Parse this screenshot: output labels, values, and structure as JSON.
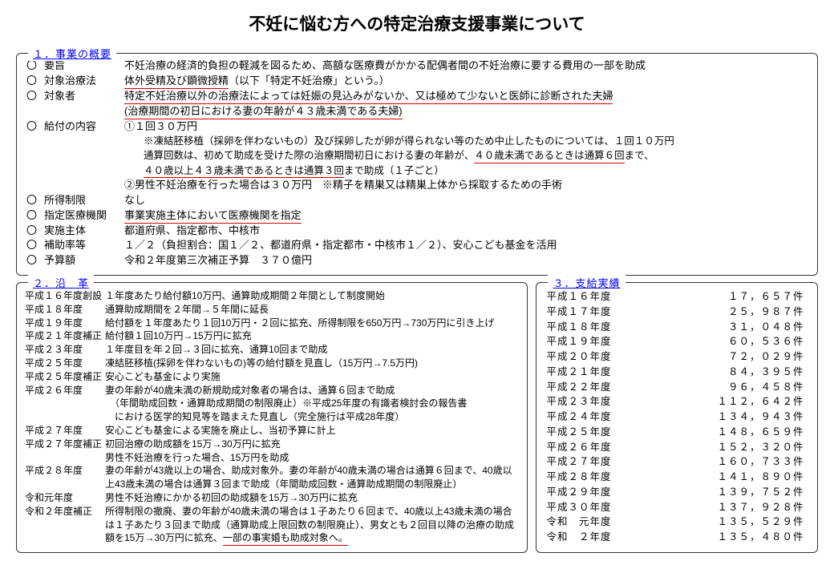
{
  "title": "不妊に悩む方への特定治療支援事業について",
  "box1": {
    "legend": "１．事業の概要",
    "rows": [
      {
        "label": "要旨",
        "value": "不妊治療の経済的負担の軽減を図るため、高額な医療費がかかる配偶者間の不妊治療に要する費用の一部を助成"
      },
      {
        "label": "対象治療法",
        "value": "<span class='ul-red'>体外受精及び顕微授精</span>（以下「特定不妊治療」という。）"
      },
      {
        "label": "対象者",
        "value": "<span class='ul-red'>特定不妊治療以外の治療法によっては妊娠の見込みがないか、又は極めて少ないと医師に診断された夫婦</span><br><span class='ul-red'>(治療期間の初日における妻の年齢が４３歳未満である夫婦)</span>"
      },
      {
        "label": "給付の内容",
        "value": "①１回３０万円<br><span class='note-indent'>※凍結胚移植（採卵を伴わないもの）及び採卵したが卵が得られない等のため中止したものについては、１回１０万円<br>通算回数は、初めて助成を受けた際の治療期間初日における妻の年齢が、<span class='ul-red'>４０歳未満であるときは通算６回</span>まで、<br><span class='ul-red'>４０歳以上４３歳未満であるときは通算３回</span>まで助成（１子ごと）</span>②男性不妊治療を行った場合は３０万円　※精子を精巣又は精巣上体から採取するための手術"
      },
      {
        "label": "所得制限",
        "value": "なし"
      },
      {
        "label": "指定医療機関",
        "value": "<span class='ul-red'>事業実施主体において医療機関を指定</span>"
      },
      {
        "label": "実施主体",
        "value": "都道府県、指定都市、中核市"
      },
      {
        "label": "補助率等",
        "value": "１／２（負担割合：国１／２、都道府県・指定都市・中核市１／２）、安心こども基金を活用"
      },
      {
        "label": "予算額",
        "value": "令和２年度第三次補正予算　３７０億円"
      }
    ]
  },
  "box2": {
    "legend": "２．沿　革",
    "rows": [
      {
        "year": "平成１６年度創設",
        "desc": "１年度あたり給付額10万円、通算助成期間２年間として制度開始"
      },
      {
        "year": "平成１８年度",
        "desc": "通算助成期間を２年間→５年間に延長"
      },
      {
        "year": "平成１９年度",
        "desc": "給付額を１年度あたり１回10万円・２回に拡充、所得制限を650万円→730万円に引き上げ"
      },
      {
        "year": "平成２１年度補正",
        "desc": "給付額１回10万円→15万円に拡充"
      },
      {
        "year": "平成２３年度",
        "desc": "１年度目を年２回→３回に拡充、通算10回まで助成"
      },
      {
        "year": "平成２５年度",
        "desc": "凍結胚移植(採卵を伴わないもの)等の給付額を見直し（15万円→7.5万円)"
      },
      {
        "year": "平成２５年度補正",
        "desc": "安心こども基金により実施"
      },
      {
        "year": "平成２６年度",
        "desc": "妻の年齢が40歳未満の新規助成対象者の場合は、通算６回まで助成<br>　（年間助成回数・通算助成期間の制限廃止）※平成25年度の有識者検討会の報告書<br>　における医学的知見等を踏まえた見直し（完全施行は平成28年度）"
      },
      {
        "year": "平成２７年度",
        "desc": "安心こども基金による実施を廃止し、当初予算に計上"
      },
      {
        "year": "平成２７年度補正",
        "desc": "初回治療の助成額を15万→30万円に拡充<br>男性不妊治療を行った場合、15万円を助成"
      },
      {
        "year": "平成２８年度",
        "desc": "妻の年齢が43歳以上の場合、助成対象外。妻の年齢が40歳未満の場合は通算６回まで、40歳以上43歳未満の場合は通算３回まで助成（年間助成回数・通算助成期間の制限廃止）"
      },
      {
        "year": "令和元年度",
        "desc": "男性不妊治療にかかる初回の助成額を15万→30万円に拡充"
      },
      {
        "year": "令和２年度補正",
        "desc": "所得制限の撤廃、妻の年齢が40歳未満の場合は１子あたり６回まで、40歳以上43歳未満の場合は１子あたり３回まで助成（通算助成上限回数の制限廃止）、男女とも２回目以降の治療の助成額を15万→30万円に拡充、<span class='ul-red'>一部の事実婚も助成対象へ。</span>"
      }
    ]
  },
  "box3": {
    "legend": "３．支給実績",
    "rows": [
      {
        "year": "平成１６年度",
        "val": "１７，６５７"
      },
      {
        "year": "平成１７年度",
        "val": "２５，９８７"
      },
      {
        "year": "平成１８年度",
        "val": "３１，０４８"
      },
      {
        "year": "平成１９年度",
        "val": "６０，５３６"
      },
      {
        "year": "平成２０年度",
        "val": "７２，０２９"
      },
      {
        "year": "平成２１年度",
        "val": "８４，３９５"
      },
      {
        "year": "平成２２年度",
        "val": "９６，４５８"
      },
      {
        "year": "平成２３年度",
        "val": "１１２，６４２"
      },
      {
        "year": "平成２４年度",
        "val": "１３４，９４３"
      },
      {
        "year": "平成２５年度",
        "val": "１４８，６５９"
      },
      {
        "year": "平成２６年度",
        "val": "１５２，３２０"
      },
      {
        "year": "平成２７年度",
        "val": "１６０，７３３"
      },
      {
        "year": "平成２８年度",
        "val": "１４１，８９０"
      },
      {
        "year": "平成２９年度",
        "val": "１３９，７５２"
      },
      {
        "year": "平成３０年度",
        "val": "１３７，９２８"
      },
      {
        "year": "令和　元年度",
        "val": "１３５，５２９"
      },
      {
        "year": "令和　２年度",
        "val": "１３５，４８０"
      }
    ],
    "unit": "件"
  },
  "style": {
    "underline_color": "#d40000",
    "legend_color": "#0000ff",
    "background": "#ffffff",
    "text_color": "#000000",
    "font_family": "MS PGothic",
    "title_fontsize": 21,
    "body_fontsize": 12
  }
}
